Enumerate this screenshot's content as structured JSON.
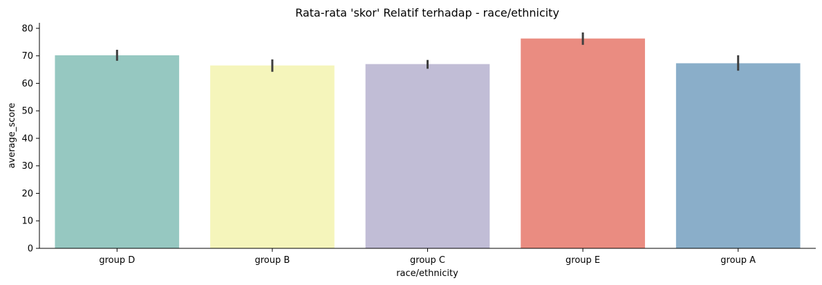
{
  "chart_data": {
    "type": "bar",
    "title": "Rata-rata 'skor' Relatif terhadap - race/ethnicity",
    "xlabel": "race/ethnicity",
    "ylabel": "average_score",
    "ylim": [
      0,
      82
    ],
    "yticks": [
      0,
      10,
      20,
      30,
      40,
      50,
      60,
      70,
      80
    ],
    "categories": [
      "group D",
      "group B",
      "group C",
      "group E",
      "group A"
    ],
    "values": [
      70.2,
      66.5,
      67.0,
      76.3,
      67.3
    ],
    "error_low": [
      68.2,
      64.2,
      65.3,
      74.0,
      64.6
    ],
    "error_high": [
      72.2,
      68.7,
      68.5,
      78.5,
      70.2
    ],
    "colors": [
      "#96c8c1",
      "#f5f5bb",
      "#c1bdd6",
      "#ea8c81",
      "#8aaec9"
    ],
    "error_bar_color": "#3f3f3f",
    "grid": false,
    "legend": "none"
  }
}
